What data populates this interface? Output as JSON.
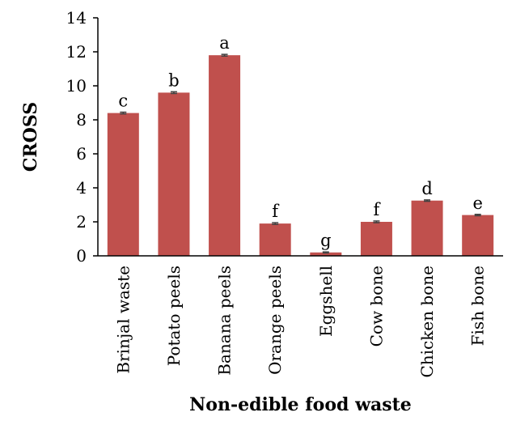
{
  "chart_data": {
    "type": "bar",
    "title": "",
    "xlabel": "Non-edible food waste",
    "ylabel": "CROSS",
    "ylim": [
      0,
      14
    ],
    "yticks": [
      0,
      2,
      4,
      6,
      8,
      10,
      12,
      14
    ],
    "grid": false,
    "legend": "none",
    "bar_color": "#C0504D",
    "error_bar_color": "#404040",
    "categories": [
      "Brinjal waste",
      "Potato peels",
      "Banana peels",
      "Orange peels",
      "Eggshell",
      "Cow bone",
      "Chicken bone",
      "Fish bone"
    ],
    "values": [
      8.4,
      9.6,
      11.8,
      1.9,
      0.2,
      2.0,
      3.25,
      2.4
    ],
    "errors": [
      0.05,
      0.05,
      0.05,
      0.05,
      0.03,
      0.05,
      0.04,
      0.04
    ],
    "significance_labels": [
      "c",
      "b",
      "a",
      "f",
      "g",
      "f",
      "d",
      "e"
    ]
  }
}
